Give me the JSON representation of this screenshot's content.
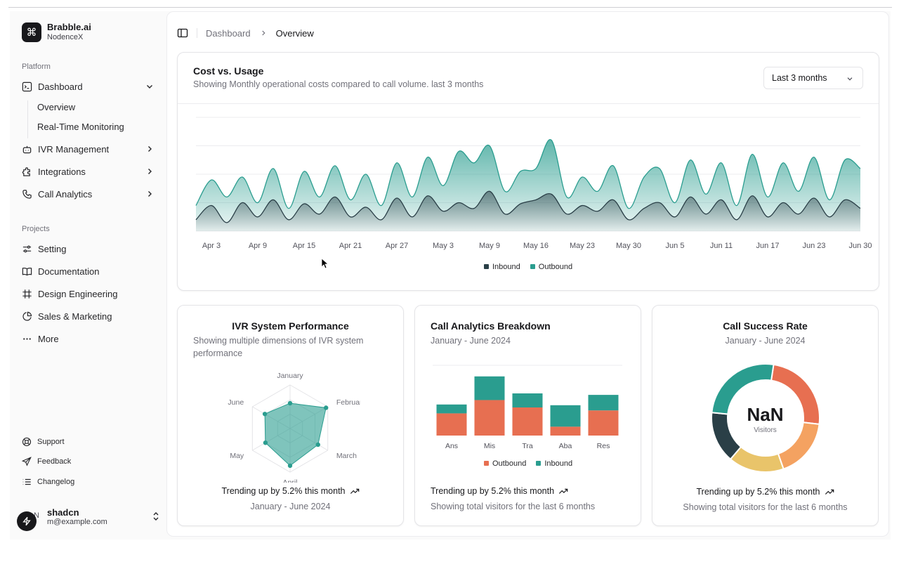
{
  "brand": {
    "name": "Brabble.ai",
    "org": "NodenceX"
  },
  "sidebar": {
    "platform_label": "Platform",
    "items": [
      {
        "label": "Dashboard"
      },
      {
        "label": "IVR Management"
      },
      {
        "label": "Integrations"
      },
      {
        "label": "Call Analytics"
      }
    ],
    "dashboard_sub": [
      {
        "label": "Overview"
      },
      {
        "label": "Real-Time Monitoring"
      }
    ],
    "projects_label": "Projects",
    "projects": [
      {
        "label": "Setting"
      },
      {
        "label": "Documentation"
      },
      {
        "label": "Design Engineering"
      },
      {
        "label": "Sales & Marketing"
      },
      {
        "label": "More"
      }
    ],
    "bottom": [
      {
        "label": "Support"
      },
      {
        "label": "Feedback"
      },
      {
        "label": "Changelog"
      }
    ],
    "user": {
      "name": "shadcn",
      "email": "m@example.com",
      "initials": "N"
    }
  },
  "breadcrumb": {
    "parent": "Dashboard",
    "current": "Overview"
  },
  "colors": {
    "inbound": "#2a3f47",
    "outbound": "#2a9d8f",
    "orange": "#e76f51",
    "sand": "#e9c46a",
    "peach": "#f4a261"
  },
  "cost_card": {
    "title": "Cost vs. Usage",
    "description": "Showing Monthly operational costs compared to call volume. last 3 months",
    "select_value": "Last 3 months",
    "legend": {
      "inbound": "Inbound",
      "outbound": "Outbound"
    }
  },
  "ivr_card": {
    "title": "IVR System Performance",
    "description": "Showing multiple dimensions of IVR system performance",
    "trend": "Trending up by 5.2% this month",
    "footer": "January - June 2024"
  },
  "breakdown_card": {
    "title": "Call Analytics Breakdown",
    "subtitle": "January - June 2024",
    "trend": "Trending up by 5.2% this month",
    "footer": "Showing total visitors for the last 6 months",
    "legend": {
      "outbound": "Outbound",
      "inbound": "Inbound"
    }
  },
  "success_card": {
    "title": "Call Success Rate",
    "subtitle": "January - June 2024",
    "center_value": "NaN",
    "center_label": "Visitors",
    "trend": "Trending up by 5.2% this month",
    "footer": "Showing total visitors for the last 6 months"
  },
  "chart_data": [
    {
      "type": "area",
      "x_ticks": [
        "Apr 3",
        "Apr 9",
        "Apr 15",
        "Apr 21",
        "Apr 27",
        "May 3",
        "May 9",
        "May 16",
        "May 23",
        "May 30",
        "Jun 5",
        "Jun 11",
        "Jun 17",
        "Jun 23",
        "Jun 30"
      ],
      "x": [
        "Apr 1",
        "Apr 3",
        "Apr 5",
        "Apr 7",
        "Apr 9",
        "Apr 11",
        "Apr 13",
        "Apr 15",
        "Apr 17",
        "Apr 19",
        "Apr 21",
        "Apr 23",
        "Apr 25",
        "Apr 27",
        "Apr 29",
        "May 1",
        "May 3",
        "May 5",
        "May 7",
        "May 9",
        "May 11",
        "May 13",
        "May 16",
        "May 18",
        "May 20",
        "May 23",
        "May 25",
        "May 27",
        "May 30",
        "Jun 1",
        "Jun 3",
        "Jun 5",
        "Jun 7",
        "Jun 9",
        "Jun 11",
        "Jun 13",
        "Jun 15",
        "Jun 17",
        "Jun 19",
        "Jun 21",
        "Jun 23",
        "Jun 25",
        "Jun 27",
        "Jun 30"
      ],
      "series": [
        {
          "name": "Inbound",
          "values": [
            20,
            45,
            15,
            50,
            25,
            55,
            20,
            48,
            30,
            60,
            25,
            42,
            20,
            58,
            25,
            62,
            35,
            50,
            40,
            70,
            30,
            48,
            55,
            65,
            30,
            45,
            35,
            55,
            20,
            40,
            50,
            25,
            60,
            30,
            55,
            20,
            62,
            25,
            50,
            30,
            58,
            25,
            55,
            40
          ]
        },
        {
          "name": "Outbound",
          "values": [
            45,
            90,
            60,
            95,
            50,
            110,
            40,
            105,
            60,
            115,
            55,
            100,
            45,
            120,
            60,
            130,
            80,
            140,
            120,
            150,
            70,
            105,
            110,
            160,
            60,
            95,
            70,
            115,
            40,
            95,
            110,
            50,
            125,
            65,
            120,
            45,
            135,
            60,
            120,
            70,
            130,
            55,
            125,
            110
          ]
        }
      ],
      "ylim": [
        0,
        200
      ],
      "grid": true,
      "legend": "bottom-center"
    },
    {
      "type": "radar",
      "categories": [
        "January",
        "February",
        "March",
        "April",
        "May",
        "June"
      ],
      "values": [
        186,
        305,
        237,
        273,
        209,
        214
      ],
      "rlim": [
        0,
        320
      ]
    },
    {
      "type": "bar",
      "stacked": true,
      "categories": [
        "Ans",
        "Mis",
        "Tra",
        "Aba",
        "Res"
      ],
      "series": [
        {
          "name": "Outbound",
          "values": [
            30,
            48,
            38,
            12,
            34
          ]
        },
        {
          "name": "Inbound",
          "values": [
            12,
            32,
            19,
            29,
            21
          ]
        }
      ],
      "ylim": [
        0,
        95
      ],
      "legend": "bottom-center"
    },
    {
      "type": "pie",
      "donut": true,
      "values": [
        275,
        200,
        187,
        173,
        290
      ],
      "colors": [
        "#e76f51",
        "#f4a261",
        "#e9c46a",
        "#2a3f47",
        "#2a9d8f"
      ]
    }
  ]
}
